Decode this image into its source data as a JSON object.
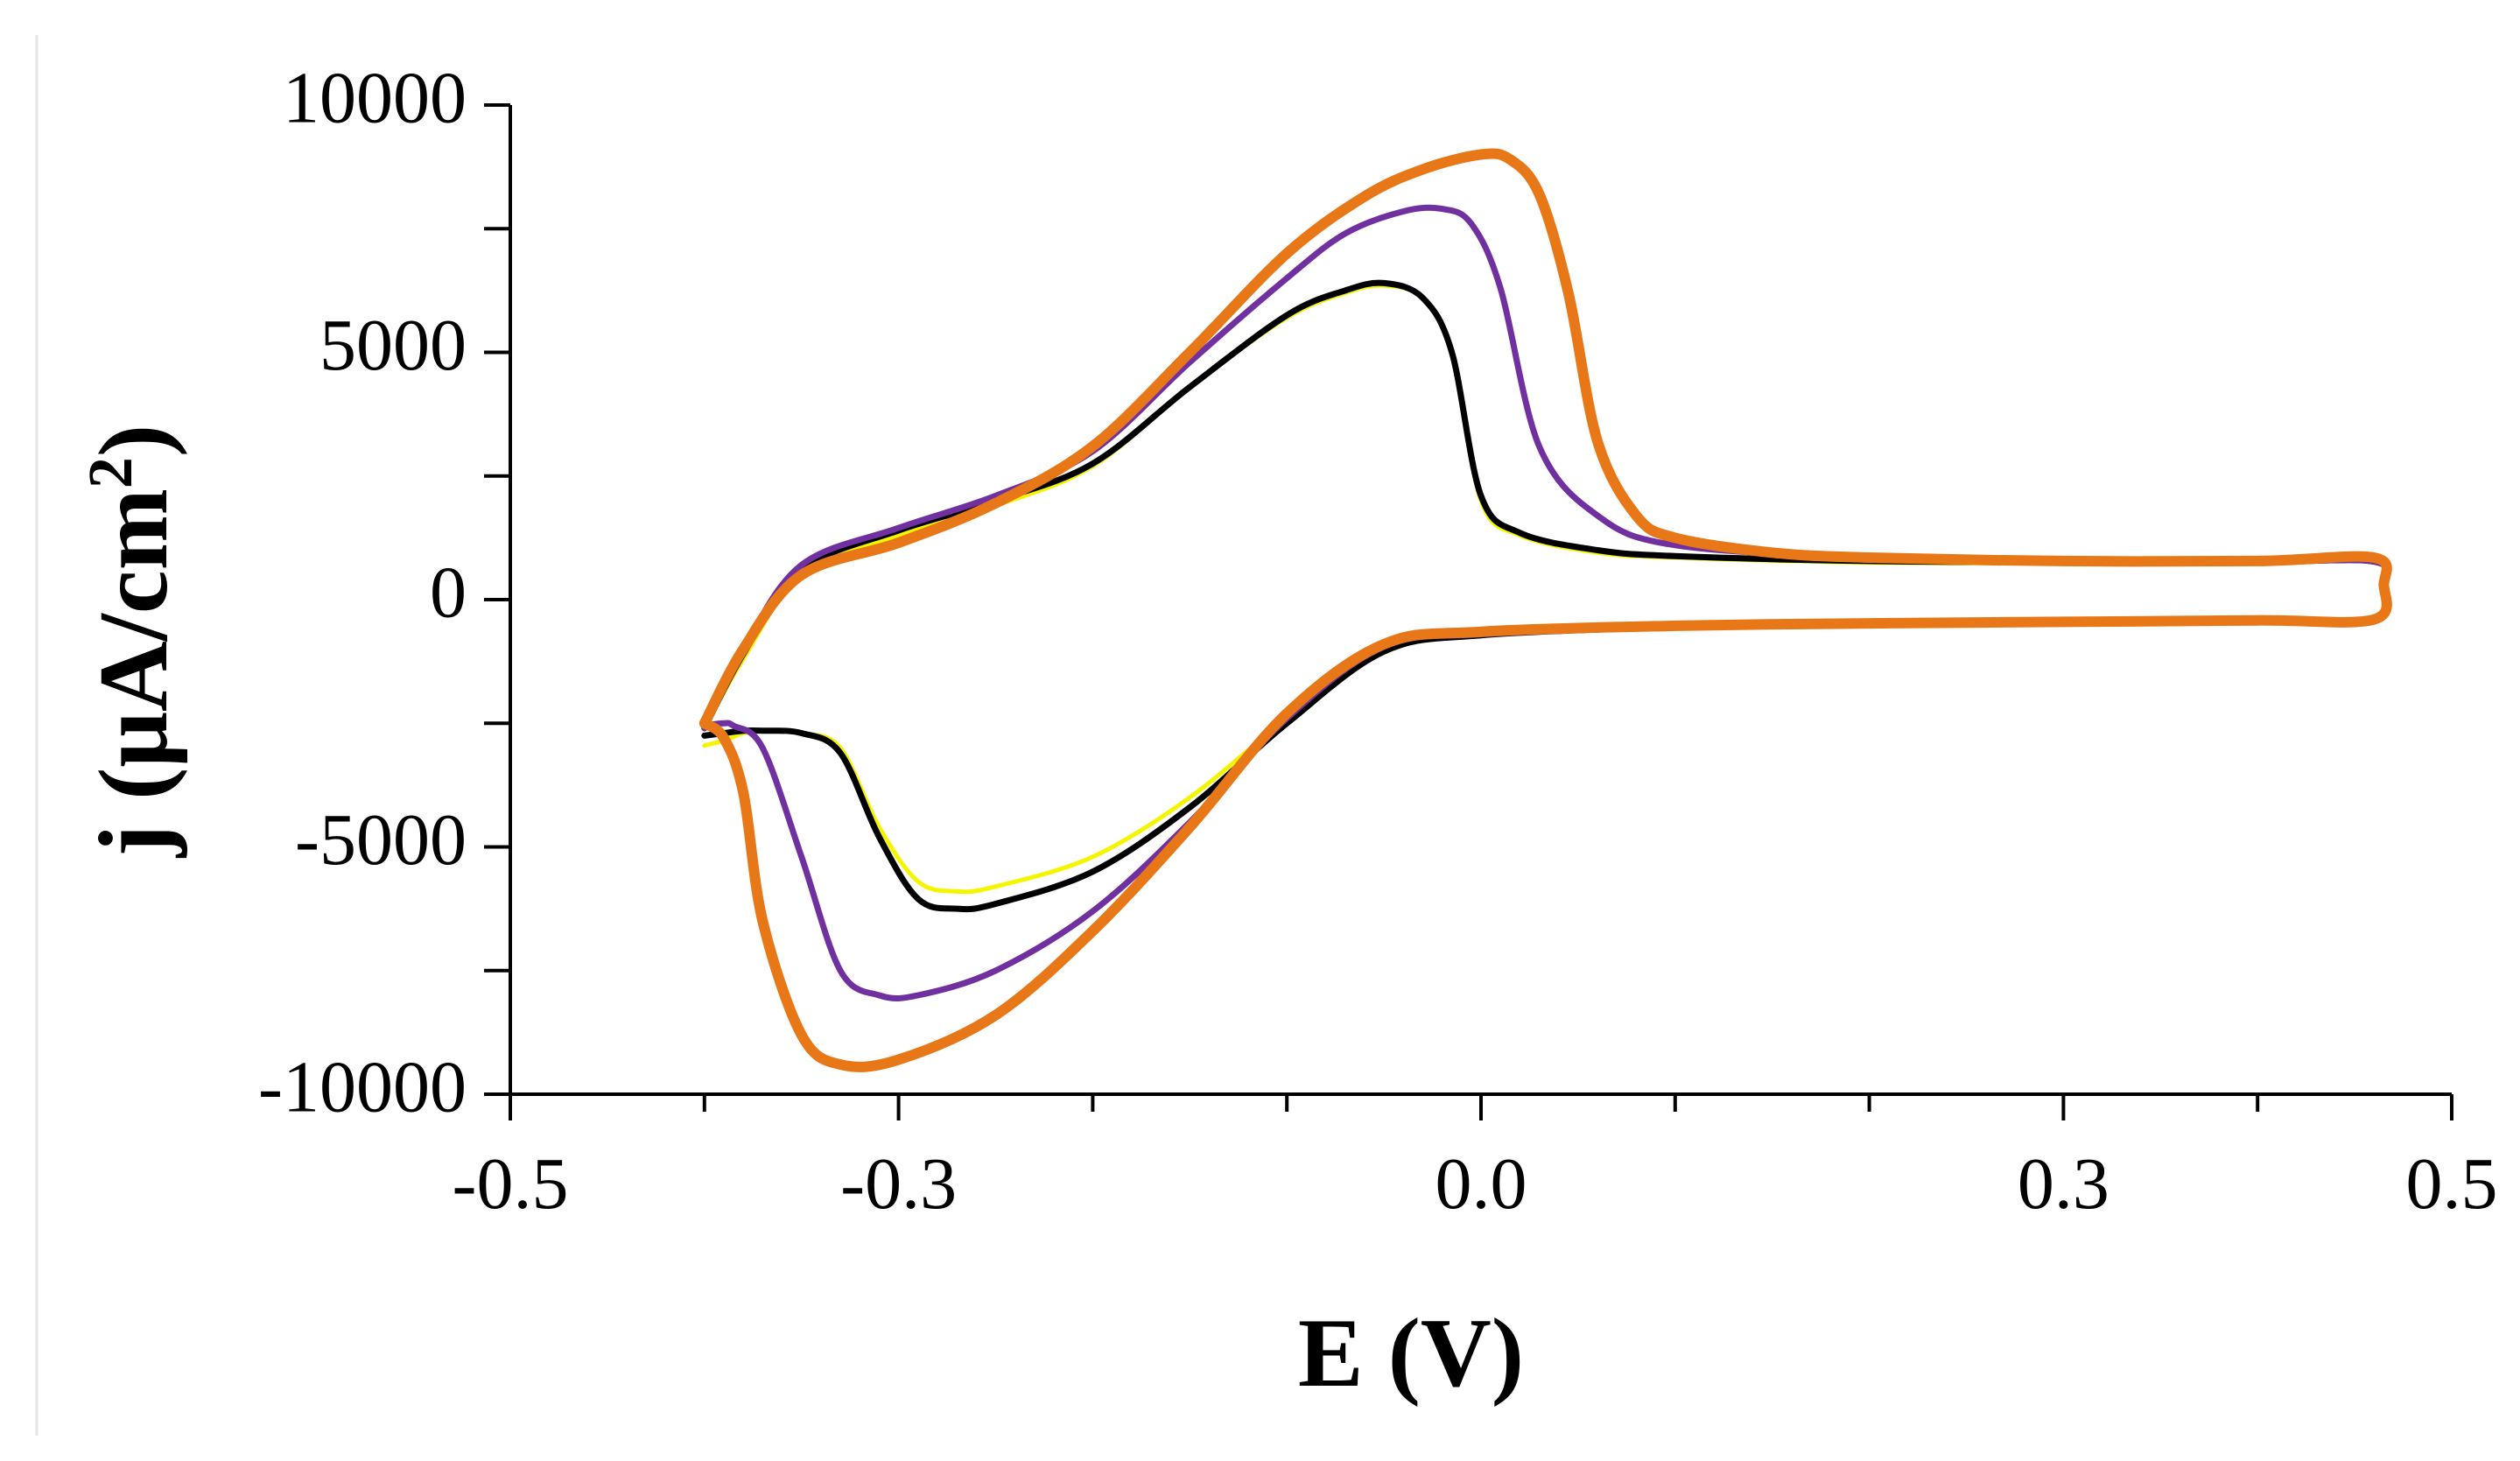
{
  "chart_data": {
    "type": "line",
    "title": "",
    "xlabel": "E (V)",
    "ylabel_main": "j (μA/cm",
    "ylabel_sup": "2",
    "ylabel_close": ")",
    "xlim": [
      -0.5,
      0.5
    ],
    "ylim": [
      -10000,
      10000
    ],
    "x_major_ticks": [
      -0.5,
      -0.3,
      0.0,
      0.3,
      0.5
    ],
    "x_tick_labels": [
      "-0.5",
      "-0.3",
      "0.0",
      "0.3",
      "0.5"
    ],
    "x_minor_ticks": [
      -0.4,
      -0.2,
      -0.1,
      0.1,
      0.2,
      0.4
    ],
    "y_major_ticks": [
      10000,
      5000,
      0,
      -5000,
      -10000
    ],
    "y_tick_labels": [
      "10000",
      "5000",
      "0",
      "-5000",
      "-10000"
    ],
    "y_minor_ticks": [
      7500,
      2500,
      -2500,
      -7500
    ],
    "grid": false,
    "legend": "none",
    "series": [
      {
        "name": "yellow",
        "color": "#f5f500",
        "weight": "thin",
        "x": [
          -0.4,
          -0.38,
          -0.35,
          -0.3,
          -0.25,
          -0.2,
          -0.15,
          -0.1,
          -0.07,
          -0.05,
          -0.03,
          -0.015,
          0.0,
          0.02,
          0.06,
          0.1,
          0.2,
          0.3,
          0.4,
          0.46,
          0.465,
          0.46,
          0.4,
          0.3,
          0.2,
          0.1,
          0.0,
          -0.05,
          -0.1,
          -0.15,
          -0.2,
          -0.25,
          -0.27,
          -0.29,
          -0.31,
          -0.33,
          -0.35,
          -0.37,
          -0.38,
          -0.39,
          -0.4
        ],
        "y": [
          -2600,
          -1200,
          500,
          1300,
          1900,
          2700,
          4300,
          5700,
          6200,
          6350,
          6100,
          5000,
          2000,
          1300,
          950,
          850,
          750,
          740,
          750,
          760,
          300,
          -420,
          -440,
          -470,
          -500,
          -550,
          -700,
          -1000,
          -2400,
          -4000,
          -5200,
          -5800,
          -5900,
          -5700,
          -4600,
          -3000,
          -2700,
          -2650,
          -2700,
          -2850,
          -2950
        ]
      },
      {
        "name": "black",
        "color": "#000000",
        "weight": "medium",
        "x": [
          -0.4,
          -0.38,
          -0.35,
          -0.3,
          -0.25,
          -0.2,
          -0.15,
          -0.1,
          -0.07,
          -0.05,
          -0.03,
          -0.015,
          0.0,
          0.02,
          0.06,
          0.1,
          0.2,
          0.3,
          0.4,
          0.46,
          0.465,
          0.46,
          0.4,
          0.3,
          0.2,
          0.1,
          0.0,
          -0.05,
          -0.1,
          -0.15,
          -0.2,
          -0.25,
          -0.27,
          -0.29,
          -0.31,
          -0.33,
          -0.35,
          -0.37,
          -0.38,
          -0.39,
          -0.4
        ],
        "y": [
          -2600,
          -1100,
          600,
          1400,
          2000,
          2750,
          4300,
          5750,
          6250,
          6400,
          6100,
          5000,
          2100,
          1350,
          1000,
          880,
          780,
          760,
          760,
          770,
          300,
          -420,
          -440,
          -470,
          -500,
          -560,
          -720,
          -1050,
          -2500,
          -4200,
          -5500,
          -6150,
          -6250,
          -6050,
          -4800,
          -3100,
          -2700,
          -2650,
          -2650,
          -2700,
          -2750
        ]
      },
      {
        "name": "purple",
        "color": "#7030a0",
        "weight": "medium",
        "x": [
          -0.4,
          -0.38,
          -0.35,
          -0.3,
          -0.25,
          -0.2,
          -0.15,
          -0.1,
          -0.07,
          -0.04,
          -0.02,
          -0.005,
          0.01,
          0.03,
          0.06,
          0.1,
          0.2,
          0.3,
          0.4,
          0.46,
          0.465,
          0.46,
          0.4,
          0.3,
          0.2,
          0.1,
          0.0,
          -0.05,
          -0.1,
          -0.15,
          -0.2,
          -0.25,
          -0.29,
          -0.31,
          -0.33,
          -0.35,
          -0.37,
          -0.385,
          -0.39,
          -0.4
        ],
        "y": [
          -2600,
          -1000,
          700,
          1450,
          2100,
          3000,
          4800,
          6500,
          7400,
          7850,
          7900,
          7600,
          6300,
          3100,
          1700,
          1100,
          850,
          780,
          770,
          770,
          300,
          -420,
          -440,
          -470,
          -500,
          -560,
          -700,
          -950,
          -2400,
          -4500,
          -6300,
          -7500,
          -8000,
          -8000,
          -7500,
          -5200,
          -3000,
          -2550,
          -2500,
          -2550
        ]
      },
      {
        "name": "orange",
        "color": "#e87717",
        "weight": "thick",
        "x": [
          -0.4,
          -0.38,
          -0.35,
          -0.3,
          -0.25,
          -0.2,
          -0.15,
          -0.1,
          -0.06,
          -0.03,
          0.0,
          0.015,
          0.03,
          0.045,
          0.06,
          0.08,
          0.1,
          0.15,
          0.2,
          0.3,
          0.4,
          0.46,
          0.465,
          0.46,
          0.4,
          0.3,
          0.2,
          0.1,
          0.0,
          -0.05,
          -0.1,
          -0.15,
          -0.2,
          -0.25,
          -0.3,
          -0.33,
          -0.35,
          -0.37,
          -0.38,
          -0.39,
          -0.4
        ],
        "y": [
          -2500,
          -1000,
          500,
          1150,
          1950,
          3100,
          5000,
          7000,
          8150,
          8700,
          9000,
          8900,
          8200,
          6200,
          3200,
          1700,
          1250,
          950,
          850,
          780,
          780,
          850,
          300,
          -400,
          -420,
          -450,
          -480,
          -530,
          -650,
          -900,
          -2300,
          -4600,
          -6700,
          -8400,
          -9300,
          -9400,
          -8800,
          -6500,
          -3900,
          -2800,
          -2500
        ]
      }
    ]
  }
}
